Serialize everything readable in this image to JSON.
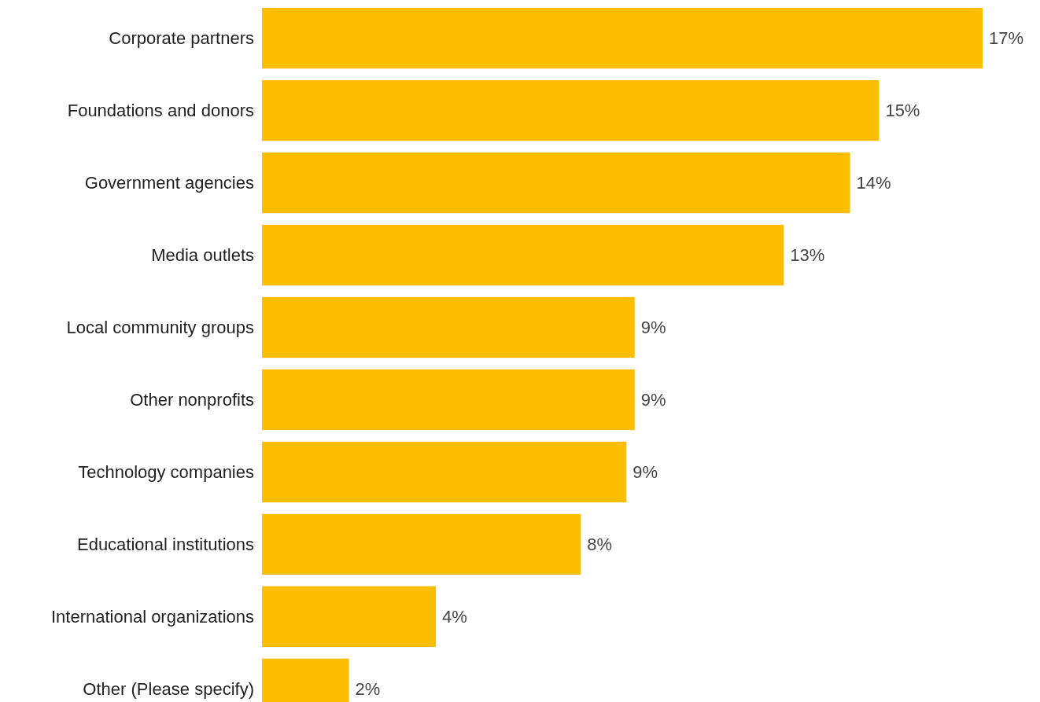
{
  "chart_data": {
    "type": "bar",
    "orientation": "horizontal",
    "categories": [
      "Corporate partners",
      "Foundations and donors",
      "Government agencies",
      "Media outlets",
      "Local community groups",
      "Other nonprofits",
      "Technology companies",
      "Educational institutions",
      "International organizations",
      "Other (Please specify)"
    ],
    "values": [
      17.4,
      14.9,
      14.2,
      12.6,
      9.0,
      9.0,
      8.8,
      7.7,
      4.2,
      2.1
    ],
    "value_labels": [
      "17%",
      "15%",
      "14%",
      "13%",
      "9%",
      "9%",
      "9%",
      "8%",
      "4%",
      "2%"
    ],
    "color": "#fdbe00"
  }
}
